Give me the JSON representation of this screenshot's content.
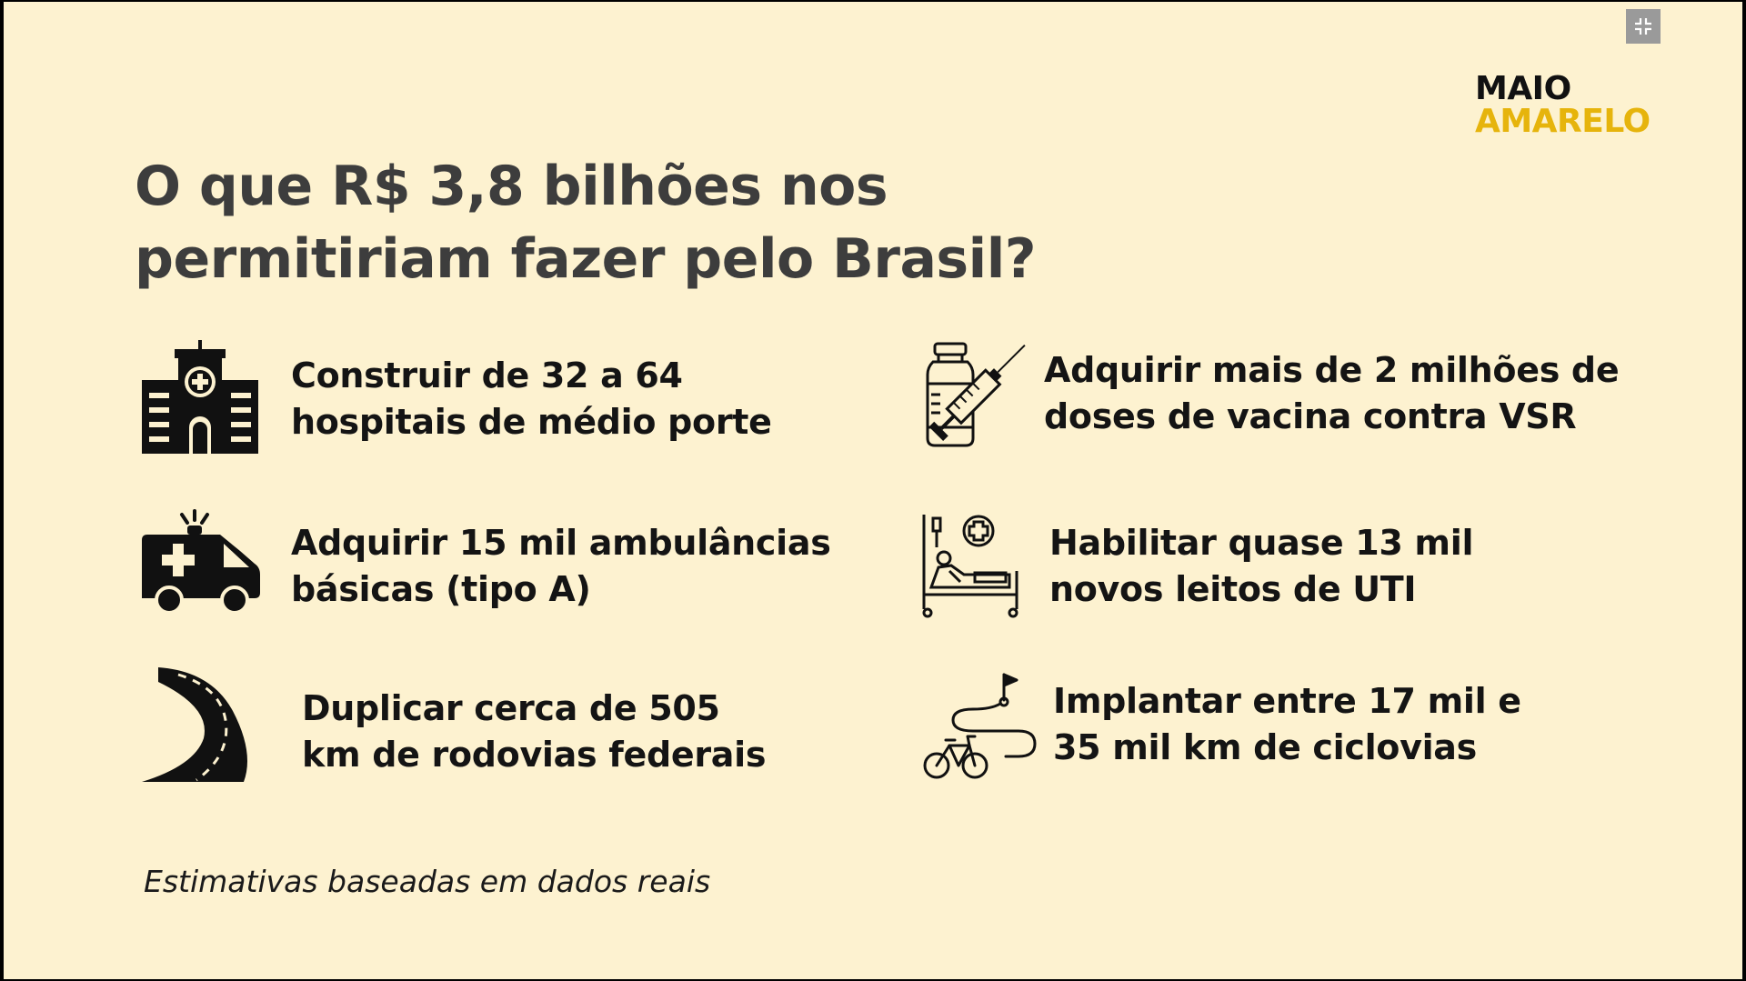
{
  "controls": {
    "exit_fullscreen_icon": "exit-fullscreen-icon"
  },
  "logo": {
    "line1": "MAIO",
    "line2": "AMARELO",
    "accent_color": "#e6b40c"
  },
  "title": "O que R$ 3,8 bilhões nos permitiriam fazer pelo Brasil?",
  "items": [
    {
      "icon": "hospital-icon",
      "line1": "Construir de 32 a 64",
      "line2": "hospitais de médio porte"
    },
    {
      "icon": "vaccine-icon",
      "line1": "Adquirir mais de 2 milhões de",
      "line2": "doses de vacina contra VSR"
    },
    {
      "icon": "ambulance-icon",
      "line1": "Adquirir 15 mil ambulâncias",
      "line2": "básicas (tipo A)"
    },
    {
      "icon": "hospital-bed-icon",
      "line1": "Habilitar quase 13 mil",
      "line2": "novos leitos de UTI"
    },
    {
      "icon": "road-icon",
      "line1": "Duplicar cerca de 505",
      "line2": "km de rodovias federais"
    },
    {
      "icon": "bike-route-icon",
      "line1": "Implantar entre 17 mil e",
      "line2": "35 mil km de ciclovias"
    }
  ],
  "footnote": "Estimativas baseadas em dados reais",
  "colors": {
    "background": "#fdf2d0",
    "title": "#3d3d3d",
    "text": "#141414"
  }
}
